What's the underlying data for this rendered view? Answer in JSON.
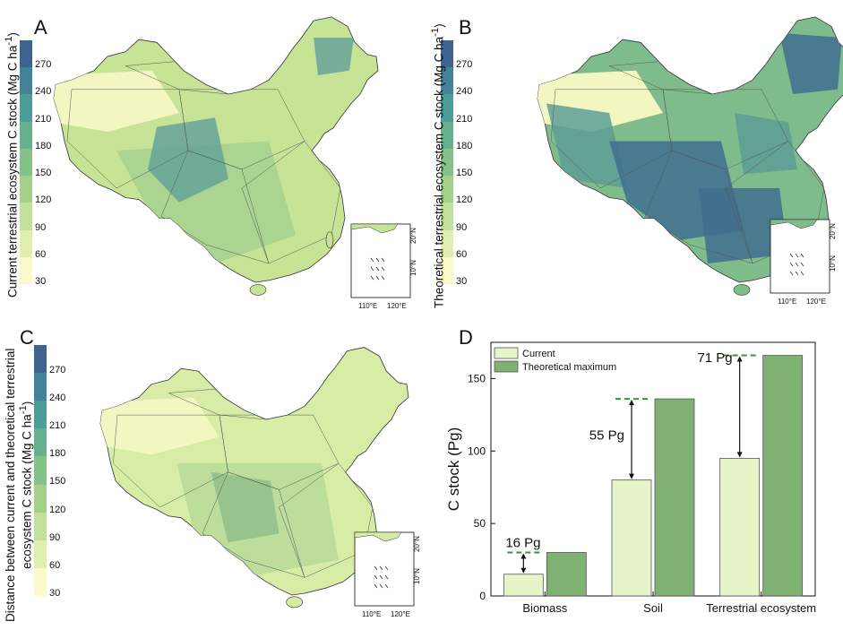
{
  "map_panels": [
    {
      "label": "A",
      "colorbar_title": "Current terrestrial ecosystem C stock (Mg C ha",
      "colorbar_title_sup": "-1",
      "colorbar_title_end": ")"
    },
    {
      "label": "B",
      "colorbar_title": "Theoretical terrestrial ecosystem C stock (Mg C ha",
      "colorbar_title_sup": "-1",
      "colorbar_title_end": ")"
    },
    {
      "label": "C",
      "colorbar_title": "Distance between current and theoretical terrestrial",
      "colorbar_title_line2": "ecosystem C stock (Mg C ha",
      "colorbar_title_sup": "-1",
      "colorbar_title_end": ")"
    }
  ],
  "colorbar_ticks": [
    "270",
    "240",
    "210",
    "180",
    "150",
    "120",
    "90",
    "60",
    "30"
  ],
  "colorbar_colors": [
    "#3f6391",
    "#44829a",
    "#4e9c98",
    "#66b08f",
    "#84c28a",
    "#a3d18b",
    "#c3e09a",
    "#e0efb0",
    "#fafbc8"
  ],
  "inset": {
    "x_ticks": [
      "110°E",
      "120°E"
    ],
    "y_ticks": [
      "20°N",
      "10°N"
    ]
  },
  "map_colors": {
    "A": "#c7e396",
    "B": "#7fbc8c",
    "C": "#d7eda6",
    "boundary": "#555555",
    "sea": "#ffffff"
  },
  "chart_label": "D",
  "chart_data": {
    "type": "bar",
    "categories": [
      "Biomass",
      "Soil",
      "Terrestrial ecosystem"
    ],
    "series": [
      {
        "name": "Current",
        "values": [
          15,
          80,
          95
        ],
        "color": "#e6f4c8"
      },
      {
        "name": "Theoretical maximum",
        "values": [
          30,
          136,
          166
        ],
        "color": "#7fb173"
      }
    ],
    "annotations": [
      "16 Pg",
      "55 Pg",
      "71 Pg"
    ],
    "ylabel": "C stock (Pg)",
    "xlabel": "",
    "ylim": [
      0,
      175
    ],
    "yticks": [
      0,
      50,
      100,
      150
    ],
    "legend": "top-left",
    "grid": false
  }
}
